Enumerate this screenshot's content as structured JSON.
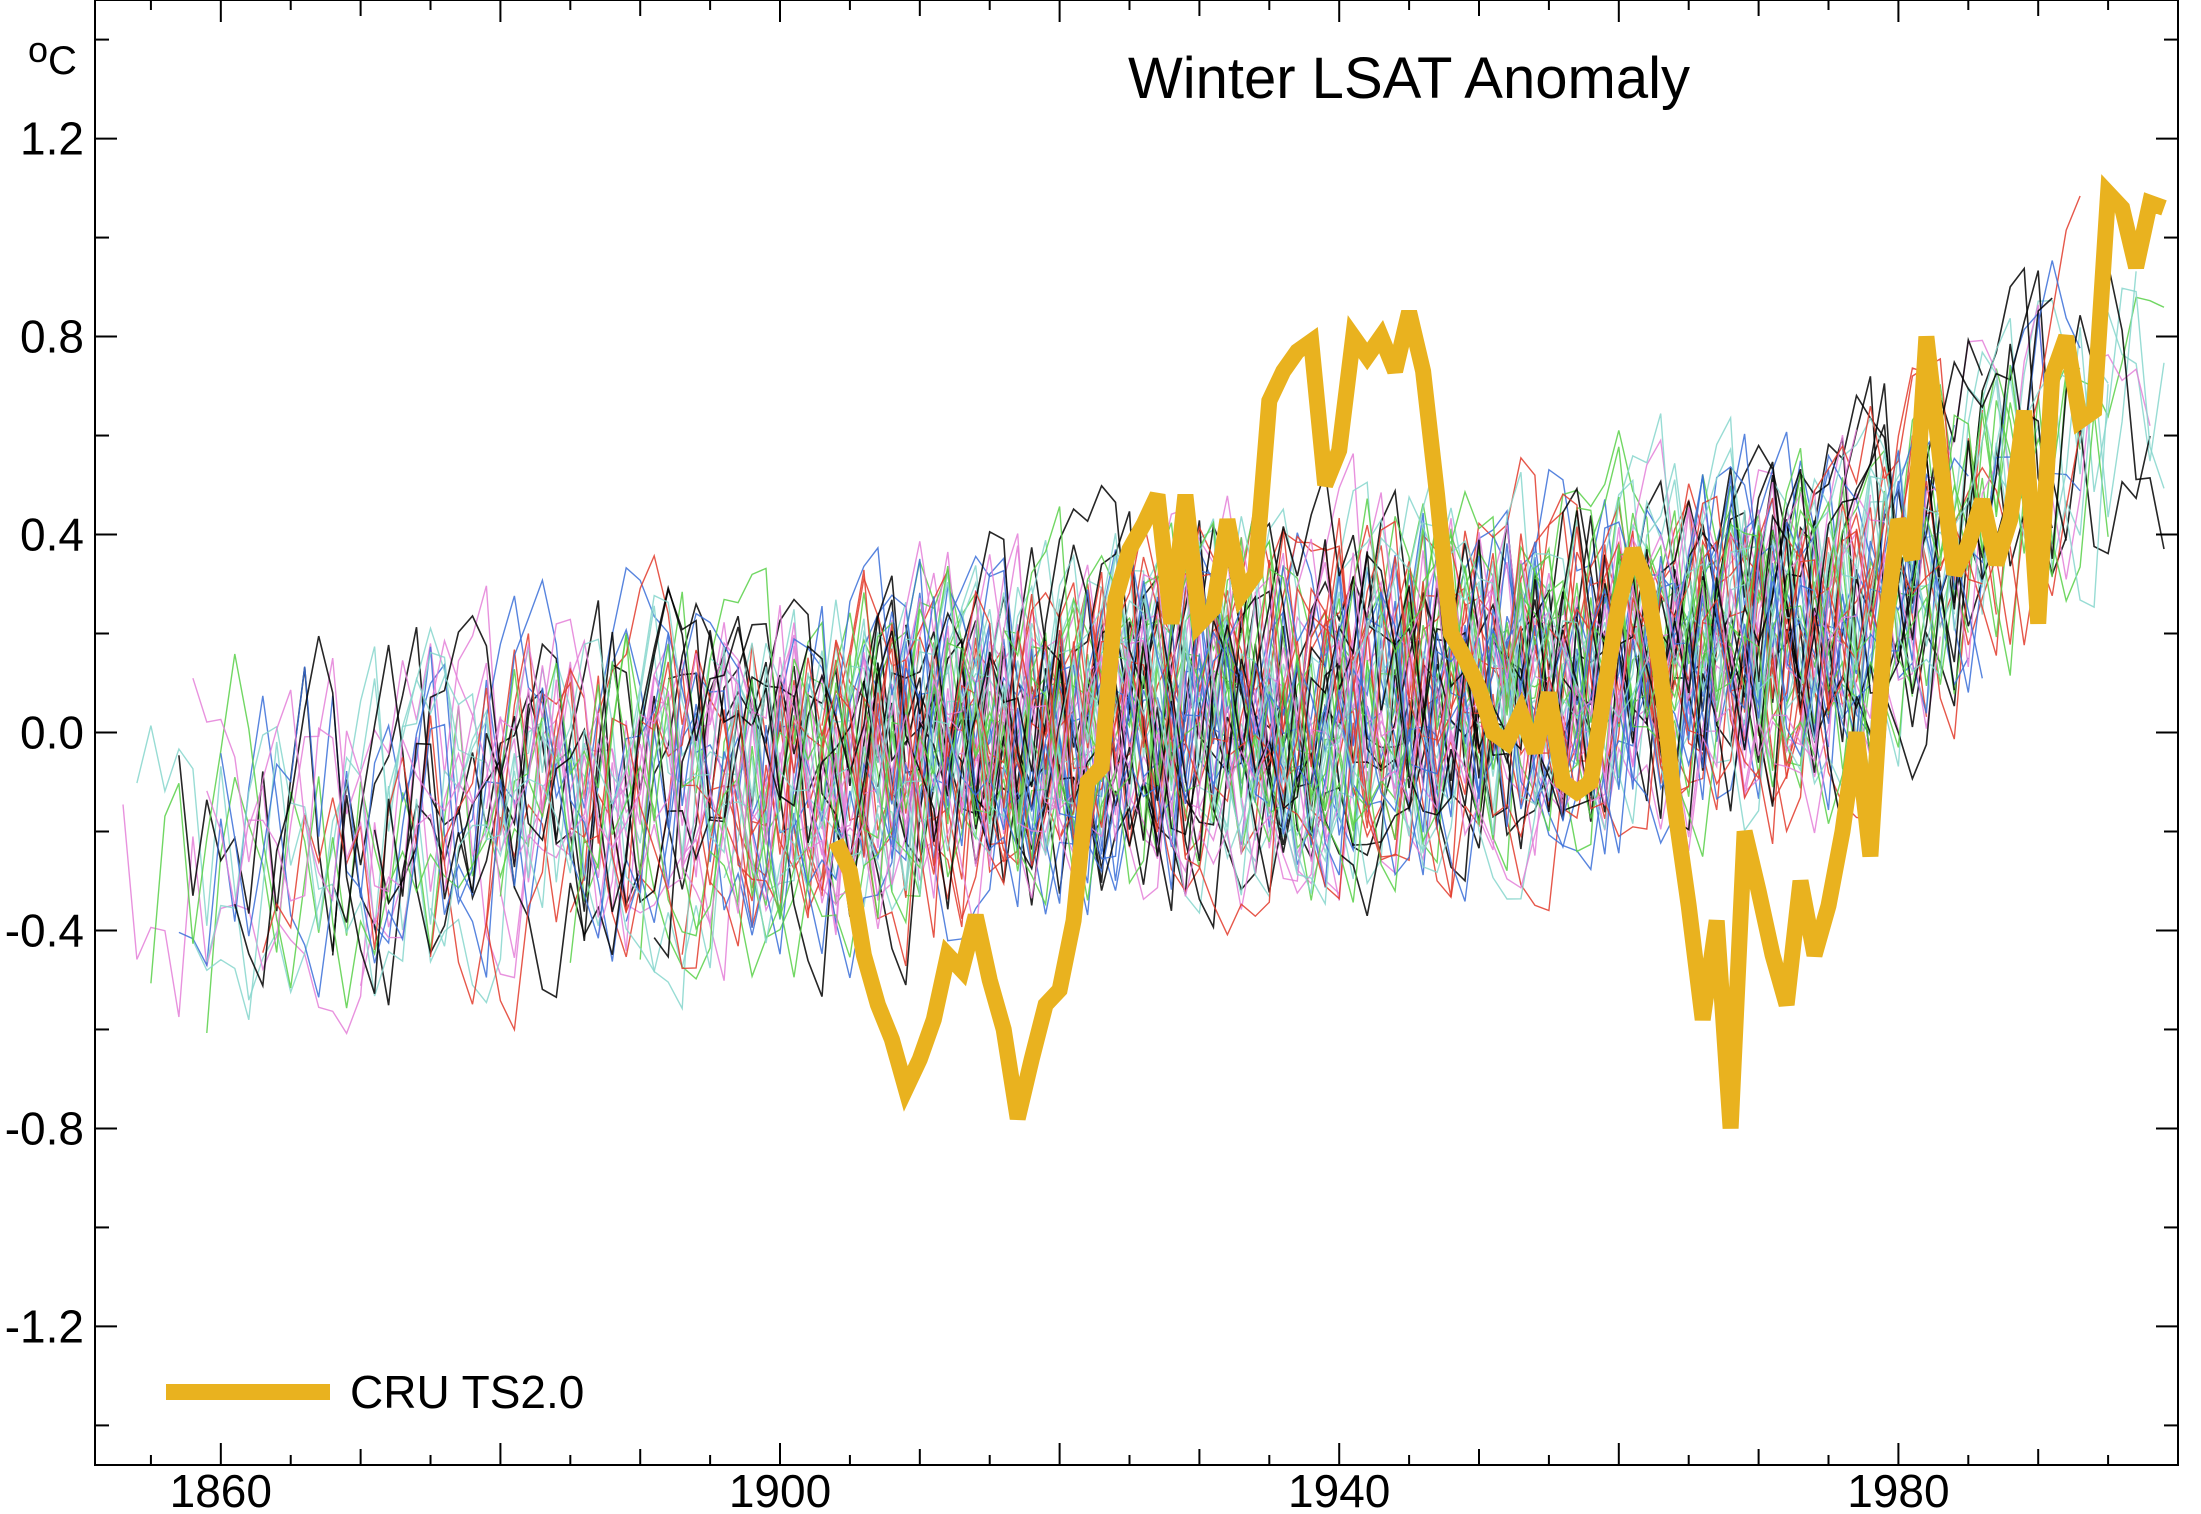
{
  "chart_data": {
    "type": "line",
    "title": "Winter LSAT Anomaly",
    "unit_label": {
      "superscript": "o",
      "text": "C"
    },
    "xlim": [
      1851,
      2000
    ],
    "ylim": [
      -1.48,
      1.48
    ],
    "x_ticks": [
      1860,
      1880,
      1900,
      1920,
      1940,
      1960,
      1980,
      2000
    ],
    "x_tick_labels": [
      "1860",
      "1900",
      "1940",
      "1980"
    ],
    "y_ticks": [
      -1.2,
      -0.8,
      -0.4,
      0.0,
      0.4,
      0.8,
      1.2
    ],
    "y_tick_labels": [
      "-1.2",
      "-0.8",
      "-0.4",
      "0.0",
      "0.4",
      "0.8",
      "1.2"
    ],
    "grid": false,
    "legend": {
      "placement": "bottom-left",
      "entries": [
        {
          "name": "CRU TS2.0",
          "color": "#e9b21f"
        }
      ]
    },
    "highlight_series": {
      "name": "CRU TS2.0",
      "color": "#e9b21f",
      "x": [
        1904,
        1905,
        1906,
        1907,
        1908,
        1909,
        1910,
        1911,
        1912,
        1913,
        1914,
        1915,
        1916,
        1917,
        1918,
        1919,
        1920,
        1921,
        1922,
        1923,
        1924,
        1925,
        1926,
        1927,
        1928,
        1929,
        1930,
        1931,
        1932,
        1933,
        1934,
        1935,
        1936,
        1937,
        1938,
        1939,
        1940,
        1941,
        1942,
        1943,
        1944,
        1945,
        1946,
        1947,
        1948,
        1949,
        1950,
        1951,
        1952,
        1953,
        1954,
        1955,
        1956,
        1957,
        1958,
        1959,
        1960,
        1961,
        1962,
        1963,
        1964,
        1965,
        1966,
        1967,
        1968,
        1969,
        1970,
        1971,
        1972,
        1973,
        1974,
        1975,
        1976,
        1977,
        1978,
        1979,
        1980,
        1981,
        1982,
        1983,
        1984,
        1985,
        1986,
        1987,
        1988,
        1989,
        1990,
        1991,
        1992,
        1993,
        1994,
        1995,
        1996,
        1997,
        1998,
        1999
      ],
      "values": [
        -0.22,
        -0.28,
        -0.45,
        -0.55,
        -0.62,
        -0.72,
        -0.66,
        -0.58,
        -0.45,
        -0.48,
        -0.37,
        -0.5,
        -0.6,
        -0.78,
        -0.66,
        -0.55,
        -0.52,
        -0.38,
        -0.1,
        -0.07,
        0.27,
        0.37,
        0.42,
        0.48,
        0.22,
        0.48,
        0.22,
        0.25,
        0.43,
        0.28,
        0.32,
        0.67,
        0.73,
        0.77,
        0.79,
        0.5,
        0.57,
        0.8,
        0.76,
        0.8,
        0.73,
        0.85,
        0.73,
        0.48,
        0.2,
        0.15,
        0.09,
        0.0,
        -0.02,
        0.04,
        -0.04,
        0.08,
        -0.1,
        -0.12,
        -0.1,
        0.09,
        0.26,
        0.37,
        0.3,
        0.12,
        -0.15,
        -0.35,
        -0.58,
        -0.38,
        -0.8,
        -0.2,
        -0.32,
        -0.45,
        -0.55,
        -0.3,
        -0.45,
        -0.35,
        -0.2,
        0.0,
        -0.25,
        0.2,
        0.43,
        0.35,
        0.8,
        0.55,
        0.32,
        0.38,
        0.47,
        0.34,
        0.43,
        0.65,
        0.22,
        0.72,
        0.8,
        0.63,
        0.65,
        1.09,
        1.06,
        0.94,
        1.07,
        1.06
      ]
    },
    "station_series_note_colors": [
      "#000000",
      "#e23a2a",
      "#3a6fd8",
      "#58d048",
      "#e47fd8",
      "#86d6cc"
    ]
  }
}
